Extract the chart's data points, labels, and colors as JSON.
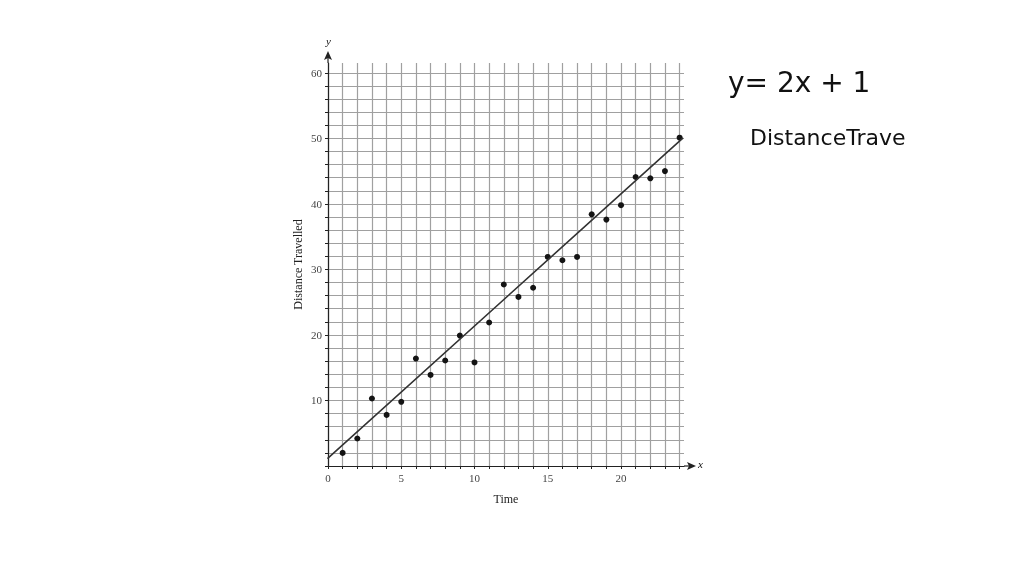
{
  "chart_data": {
    "type": "scatter",
    "xlabel": "Time",
    "ylabel": "Distance Travelled",
    "annotations": [
      "y= 2x + 1",
      "DistanceTrave",
      "x",
      "y"
    ],
    "x": [
      1,
      2,
      3,
      4,
      5,
      6,
      7,
      8,
      9,
      10,
      11,
      12,
      13,
      14,
      15,
      16,
      17,
      18,
      19,
      20,
      21,
      22,
      23,
      24
    ],
    "series": [
      {
        "type": "scatter",
        "color": "#141414",
        "values": [
          2.0,
          4.2,
          10.3,
          7.8,
          9.8,
          16.4,
          13.9,
          16.1,
          19.9,
          15.8,
          21.9,
          27.7,
          25.8,
          27.2,
          31.9,
          31.4,
          31.9,
          38.4,
          37.6,
          39.8,
          44.1,
          43.9,
          45.0,
          50.1
        ]
      },
      {
        "type": "line",
        "color": "#333333",
        "marker": "none",
        "x": [
          0,
          24.2
        ],
        "values": [
          1.2,
          50.0
        ]
      }
    ],
    "xlim": [
      0,
      24.3
    ],
    "ylim": [
      0,
      61.5
    ],
    "xticks": [
      0,
      {
        "value": 1,
        "label": null
      },
      {
        "value": 2,
        "label": null
      },
      {
        "value": 3,
        "label": null
      },
      {
        "value": 4,
        "label": null
      },
      5,
      {
        "value": 6,
        "label": null
      },
      {
        "value": 7,
        "label": null
      },
      {
        "value": 8,
        "label": null
      },
      {
        "value": 9,
        "label": null
      },
      10,
      {
        "value": 11,
        "label": null
      },
      {
        "value": 12,
        "label": null
      },
      {
        "value": 13,
        "label": null
      },
      {
        "value": 14,
        "label": null
      },
      15,
      {
        "value": 16,
        "label": null
      },
      {
        "value": 17,
        "label": null
      },
      {
        "value": 18,
        "label": null
      },
      {
        "value": 19,
        "label": null
      },
      20,
      {
        "value": 21,
        "label": null
      },
      {
        "value": 22,
        "label": null
      },
      {
        "value": 23,
        "label": null
      },
      {
        "value": 24,
        "label": null
      }
    ],
    "yticks": [
      {
        "value": 0,
        "label": null
      },
      {
        "value": 2,
        "label": null
      },
      {
        "value": 4,
        "label": null
      },
      {
        "value": 6,
        "label": null
      },
      {
        "value": 8,
        "label": null
      },
      10,
      {
        "value": 12,
        "label": null
      },
      {
        "value": 14,
        "label": null
      },
      {
        "value": 16,
        "label": null
      },
      {
        "value": 18,
        "label": null
      },
      20,
      {
        "value": 22,
        "label": null
      },
      {
        "value": 24,
        "label": null
      },
      {
        "value": 26,
        "label": null
      },
      {
        "value": 28,
        "label": null
      },
      30,
      {
        "value": 32,
        "label": null
      },
      {
        "value": 34,
        "label": null
      },
      {
        "value": 36,
        "label": null
      },
      {
        "value": 38,
        "label": null
      },
      40,
      {
        "value": 42,
        "label": null
      },
      {
        "value": 44,
        "label": null
      },
      {
        "value": 46,
        "label": null
      },
      {
        "value": 48,
        "label": null
      },
      50,
      {
        "value": 52,
        "label": null
      },
      {
        "value": 54,
        "label": null
      },
      {
        "value": 56,
        "label": null
      },
      {
        "value": 58,
        "label": null
      },
      60
    ],
    "grid": true,
    "marker": "circle",
    "line_style": "solid"
  }
}
